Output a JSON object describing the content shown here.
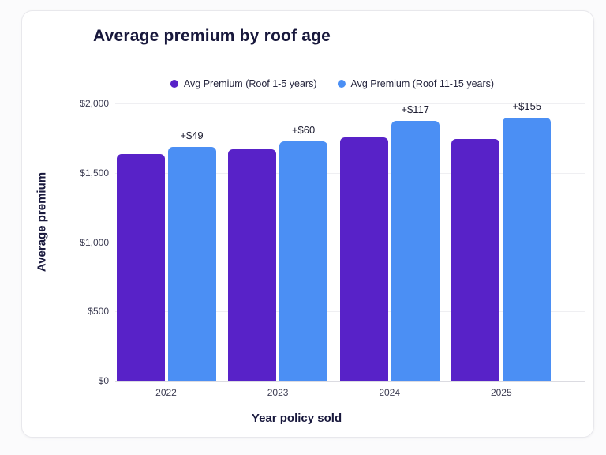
{
  "chart_data": {
    "type": "bar",
    "title": "Average premium by roof age",
    "xlabel": "Year policy sold",
    "ylabel": "Average premium",
    "categories": [
      "2022",
      "2023",
      "2024",
      "2025"
    ],
    "series": [
      {
        "name": "Avg Premium (Roof 1-5 years)",
        "color": "#5822C8",
        "values": [
          1636,
          1668,
          1755,
          1741
        ]
      },
      {
        "name": "Avg Premium (Roof 11-15 years)",
        "color": "#4B8FF4",
        "values": [
          1685,
          1728,
          1872,
          1896
        ]
      }
    ],
    "annotations": [
      {
        "category": "2022",
        "label": "+$49"
      },
      {
        "category": "2023",
        "label": "+$60"
      },
      {
        "category": "2024",
        "label": "+$117"
      },
      {
        "category": "2025",
        "label": "+$155"
      }
    ],
    "ylim": [
      0,
      2000
    ],
    "yticks": [
      0,
      500,
      1000,
      1500,
      2000
    ],
    "ytick_labels": [
      "$0",
      "$500",
      "$1,000",
      "$1,500",
      "$2,000"
    ],
    "grid": true,
    "legend_position": "top"
  },
  "colors": {
    "purple_bar": "#5822C8",
    "blue_bar": "#4B8FF4",
    "heading_text": "#18183C",
    "tick_text": "#3C3C52",
    "gridline": "#EFEFF2",
    "axis_line": "#DBDBE1",
    "card_border": "#E8E8EC",
    "card_background": "#FFFFFF"
  }
}
